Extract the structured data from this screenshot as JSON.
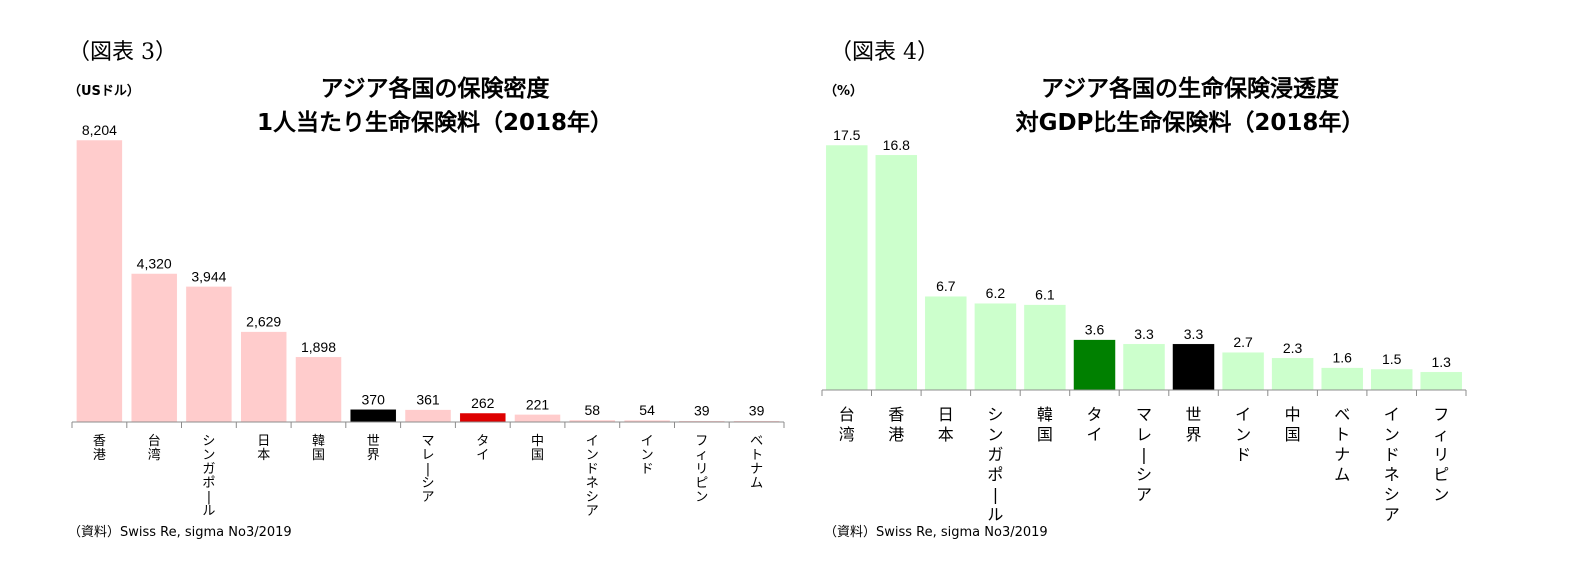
{
  "charts": [
    {
      "figure_label": "（図表 3）",
      "unit_label": "（USドル）",
      "title_line1": "アジア各国の保険密度",
      "title_line2": "1人当たり生命保険料（2018年）",
      "source": "（資料）Swiss Re, sigma No3/2019"
    },
    {
      "figure_label": "（図表 4）",
      "unit_label": "（%）",
      "title_line1": "アジア各国の生命保険浸透度",
      "title_line2": "対GDP比生命保険料（2018年）",
      "source": "（資料）Swiss Re, sigma No3/2019"
    }
  ],
  "chart_data": [
    {
      "type": "bar",
      "title": "アジア各国の保険密度 1人当たり生命保険料（2018年）",
      "ylabel": "（USドル）",
      "categories": [
        "香港",
        "台湾",
        "シンガポール",
        "日本",
        "韓国",
        "世界",
        "マレーシア",
        "タイ",
        "中国",
        "インドネシア",
        "インド",
        "フィリピン",
        "ベトナム"
      ],
      "values": [
        8204,
        4320,
        3944,
        2629,
        1898,
        370,
        361,
        262,
        221,
        58,
        54,
        39,
        39
      ],
      "value_labels": [
        "8,204",
        "4,320",
        "3,944",
        "2,629",
        "1,898",
        "370",
        "361",
        "262",
        "221",
        "58",
        "54",
        "39",
        "39"
      ],
      "colors": [
        "#ffcccc",
        "#ffcccc",
        "#ffcccc",
        "#ffcccc",
        "#ffcccc",
        "#000000",
        "#ffcccc",
        "#dd0000",
        "#ffcccc",
        "#ffcccc",
        "#ffcccc",
        "#ffcccc",
        "#ffcccc"
      ],
      "ylim": [
        0,
        8204
      ],
      "grid": false,
      "legend": "none"
    },
    {
      "type": "bar",
      "title": "アジア各国の生命保険浸透度 対GDP比生命保険料（2018年）",
      "ylabel": "（%）",
      "categories": [
        "台湾",
        "香港",
        "日本",
        "シンガポール",
        "韓国",
        "タイ",
        "マレーシア",
        "世界",
        "インド",
        "中国",
        "ベトナム",
        "インドネシア",
        "フィリピン"
      ],
      "values": [
        17.5,
        16.8,
        6.7,
        6.2,
        6.1,
        3.6,
        3.3,
        3.3,
        2.7,
        2.3,
        1.6,
        1.5,
        1.3
      ],
      "value_labels": [
        "17.5",
        "16.8",
        "6.7",
        "6.2",
        "6.1",
        "3.6",
        "3.3",
        "3.3",
        "2.7",
        "2.3",
        "1.6",
        "1.5",
        "1.3"
      ],
      "colors": [
        "#ccffcc",
        "#ccffcc",
        "#ccffcc",
        "#ccffcc",
        "#ccffcc",
        "#008000",
        "#ccffcc",
        "#000000",
        "#ccffcc",
        "#ccffcc",
        "#ccffcc",
        "#ccffcc",
        "#ccffcc"
      ],
      "ylim": [
        0,
        17.5
      ],
      "grid": false,
      "legend": "none"
    }
  ]
}
